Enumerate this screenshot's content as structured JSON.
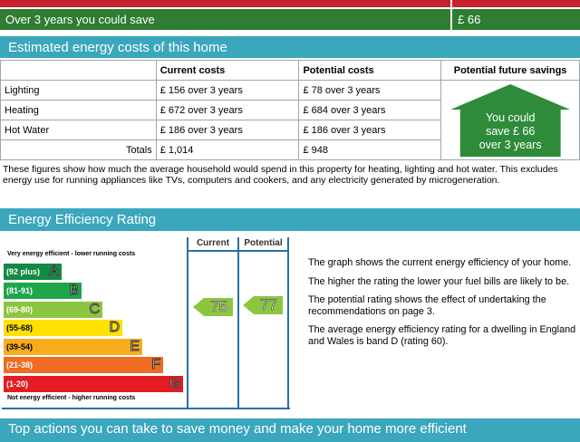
{
  "top_rows": [
    {
      "label": "",
      "value": "",
      "color": "#c8202f"
    },
    {
      "label": "Over 3 years you could save",
      "value": "£ 66",
      "color": "#2e7d32"
    }
  ],
  "costs": {
    "title": "Estimated energy costs of this home",
    "headers": [
      "",
      "Current costs",
      "Potential costs",
      "Potential future savings"
    ],
    "rows": [
      {
        "label": "Lighting",
        "current": "£ 156 over 3 years",
        "potential": "£ 78 over 3 years"
      },
      {
        "label": "Heating",
        "current": "£ 672 over 3 years",
        "potential": "£ 684 over 3 years"
      },
      {
        "label": "Hot Water",
        "current": "£ 186 over 3 years",
        "potential": "£ 186 over 3 years"
      }
    ],
    "totals": {
      "label": "Totals",
      "current": "£ 1,014",
      "potential": "£ 948"
    },
    "savings_lines": [
      "You could",
      "save £ 66",
      "over 3 years"
    ],
    "note": "These figures show how much the average household would spend in this property for heating, lighting and hot water. This excludes energy use for running appliances like TVs, computers and cookers, and any electricity generated by microgeneration."
  },
  "rating": {
    "title": "Energy Efficiency Rating",
    "top_label": "Very energy efficient - lower running costs",
    "bottom_label": "Not energy efficient - higher running costs",
    "col_current": "Current",
    "col_potential": "Potential",
    "bands": [
      {
        "range": "(92 plus)",
        "letter": "A",
        "color": "#138a43"
      },
      {
        "range": "(81-91)",
        "letter": "B",
        "color": "#1fa64a"
      },
      {
        "range": "(69-80)",
        "letter": "C",
        "color": "#8cc63f"
      },
      {
        "range": "(55-68)",
        "letter": "D",
        "color": "#ffe100"
      },
      {
        "range": "(39-54)",
        "letter": "E",
        "color": "#f7ac1c"
      },
      {
        "range": "(21-38)",
        "letter": "F",
        "color": "#ef6c23"
      },
      {
        "range": "(1-20)",
        "letter": "G",
        "color": "#e31d23"
      }
    ],
    "current": "75",
    "potential": "77",
    "paras": [
      "The graph shows the current energy efficiency of your home.",
      "The higher the rating the lower your fuel bills are likely to be.",
      "The potential rating shows the effect of undertaking the recommendations on page 3.",
      "The average energy efficiency rating for a dwelling in England and Wales is band D (rating 60)."
    ]
  },
  "actions_title": "Top actions you can take to save money and make your home more efficient"
}
